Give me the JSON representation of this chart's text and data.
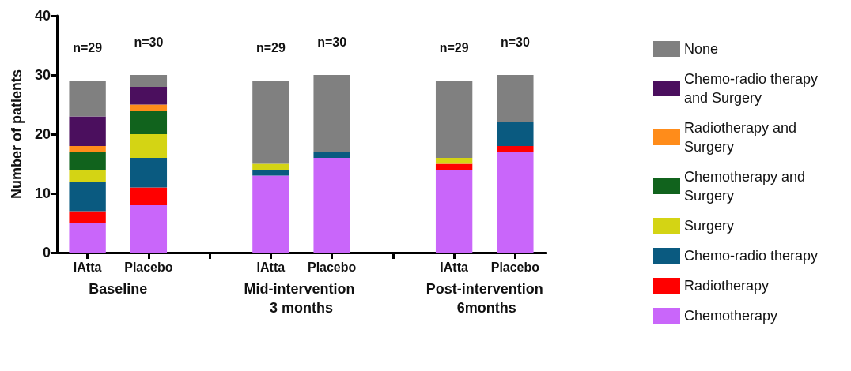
{
  "chart_data": {
    "type": "bar",
    "stacked": true,
    "ylabel": "Number of patients",
    "ylim": [
      0,
      40
    ],
    "yticks": [
      0,
      10,
      20,
      30,
      40
    ],
    "legend": "right",
    "categories": [
      "IAtta",
      "Placebo",
      null,
      "IAtta",
      "Placebo",
      null,
      "IAtta",
      "Placebo"
    ],
    "series": [
      {
        "name": "Chemotherapy",
        "color": "#c966fa",
        "values": [
          5,
          8,
          null,
          13,
          16,
          null,
          14,
          17
        ]
      },
      {
        "name": "Radiotherapy",
        "color": "#ff0000",
        "values": [
          2,
          3,
          null,
          0,
          0,
          null,
          1,
          1
        ]
      },
      {
        "name": "Chemo-radio therapy",
        "color": "#0a5a80",
        "values": [
          5,
          5,
          null,
          1,
          1,
          null,
          0,
          4
        ]
      },
      {
        "name": "Surgery",
        "color": "#d4d414",
        "values": [
          2,
          4,
          null,
          1,
          0,
          null,
          1,
          0
        ]
      },
      {
        "name": "Chemotherapy and Surgery",
        "color": "#11631d",
        "values": [
          3,
          4,
          null,
          0,
          0,
          null,
          0,
          0
        ]
      },
      {
        "name": "Radiotherapy and Surgery",
        "color": "#ff8c1a",
        "values": [
          1,
          1,
          null,
          0,
          0,
          null,
          0,
          0
        ]
      },
      {
        "name": "Chemo-radio therapy and Surgery",
        "color": "#4b0f5e",
        "values": [
          5,
          3,
          null,
          0,
          0,
          null,
          0,
          0
        ]
      },
      {
        "name": "None",
        "color": "#808080",
        "values": [
          6,
          2,
          null,
          14,
          13,
          null,
          13,
          8
        ]
      }
    ],
    "totals": [
      "n=29",
      "n=30",
      null,
      "n=29",
      "n=30",
      null,
      "n=29",
      "n=30"
    ],
    "annotations": [
      "Baseline",
      "Mid-intervention 3 months",
      "Post-intervention 6months"
    ]
  }
}
